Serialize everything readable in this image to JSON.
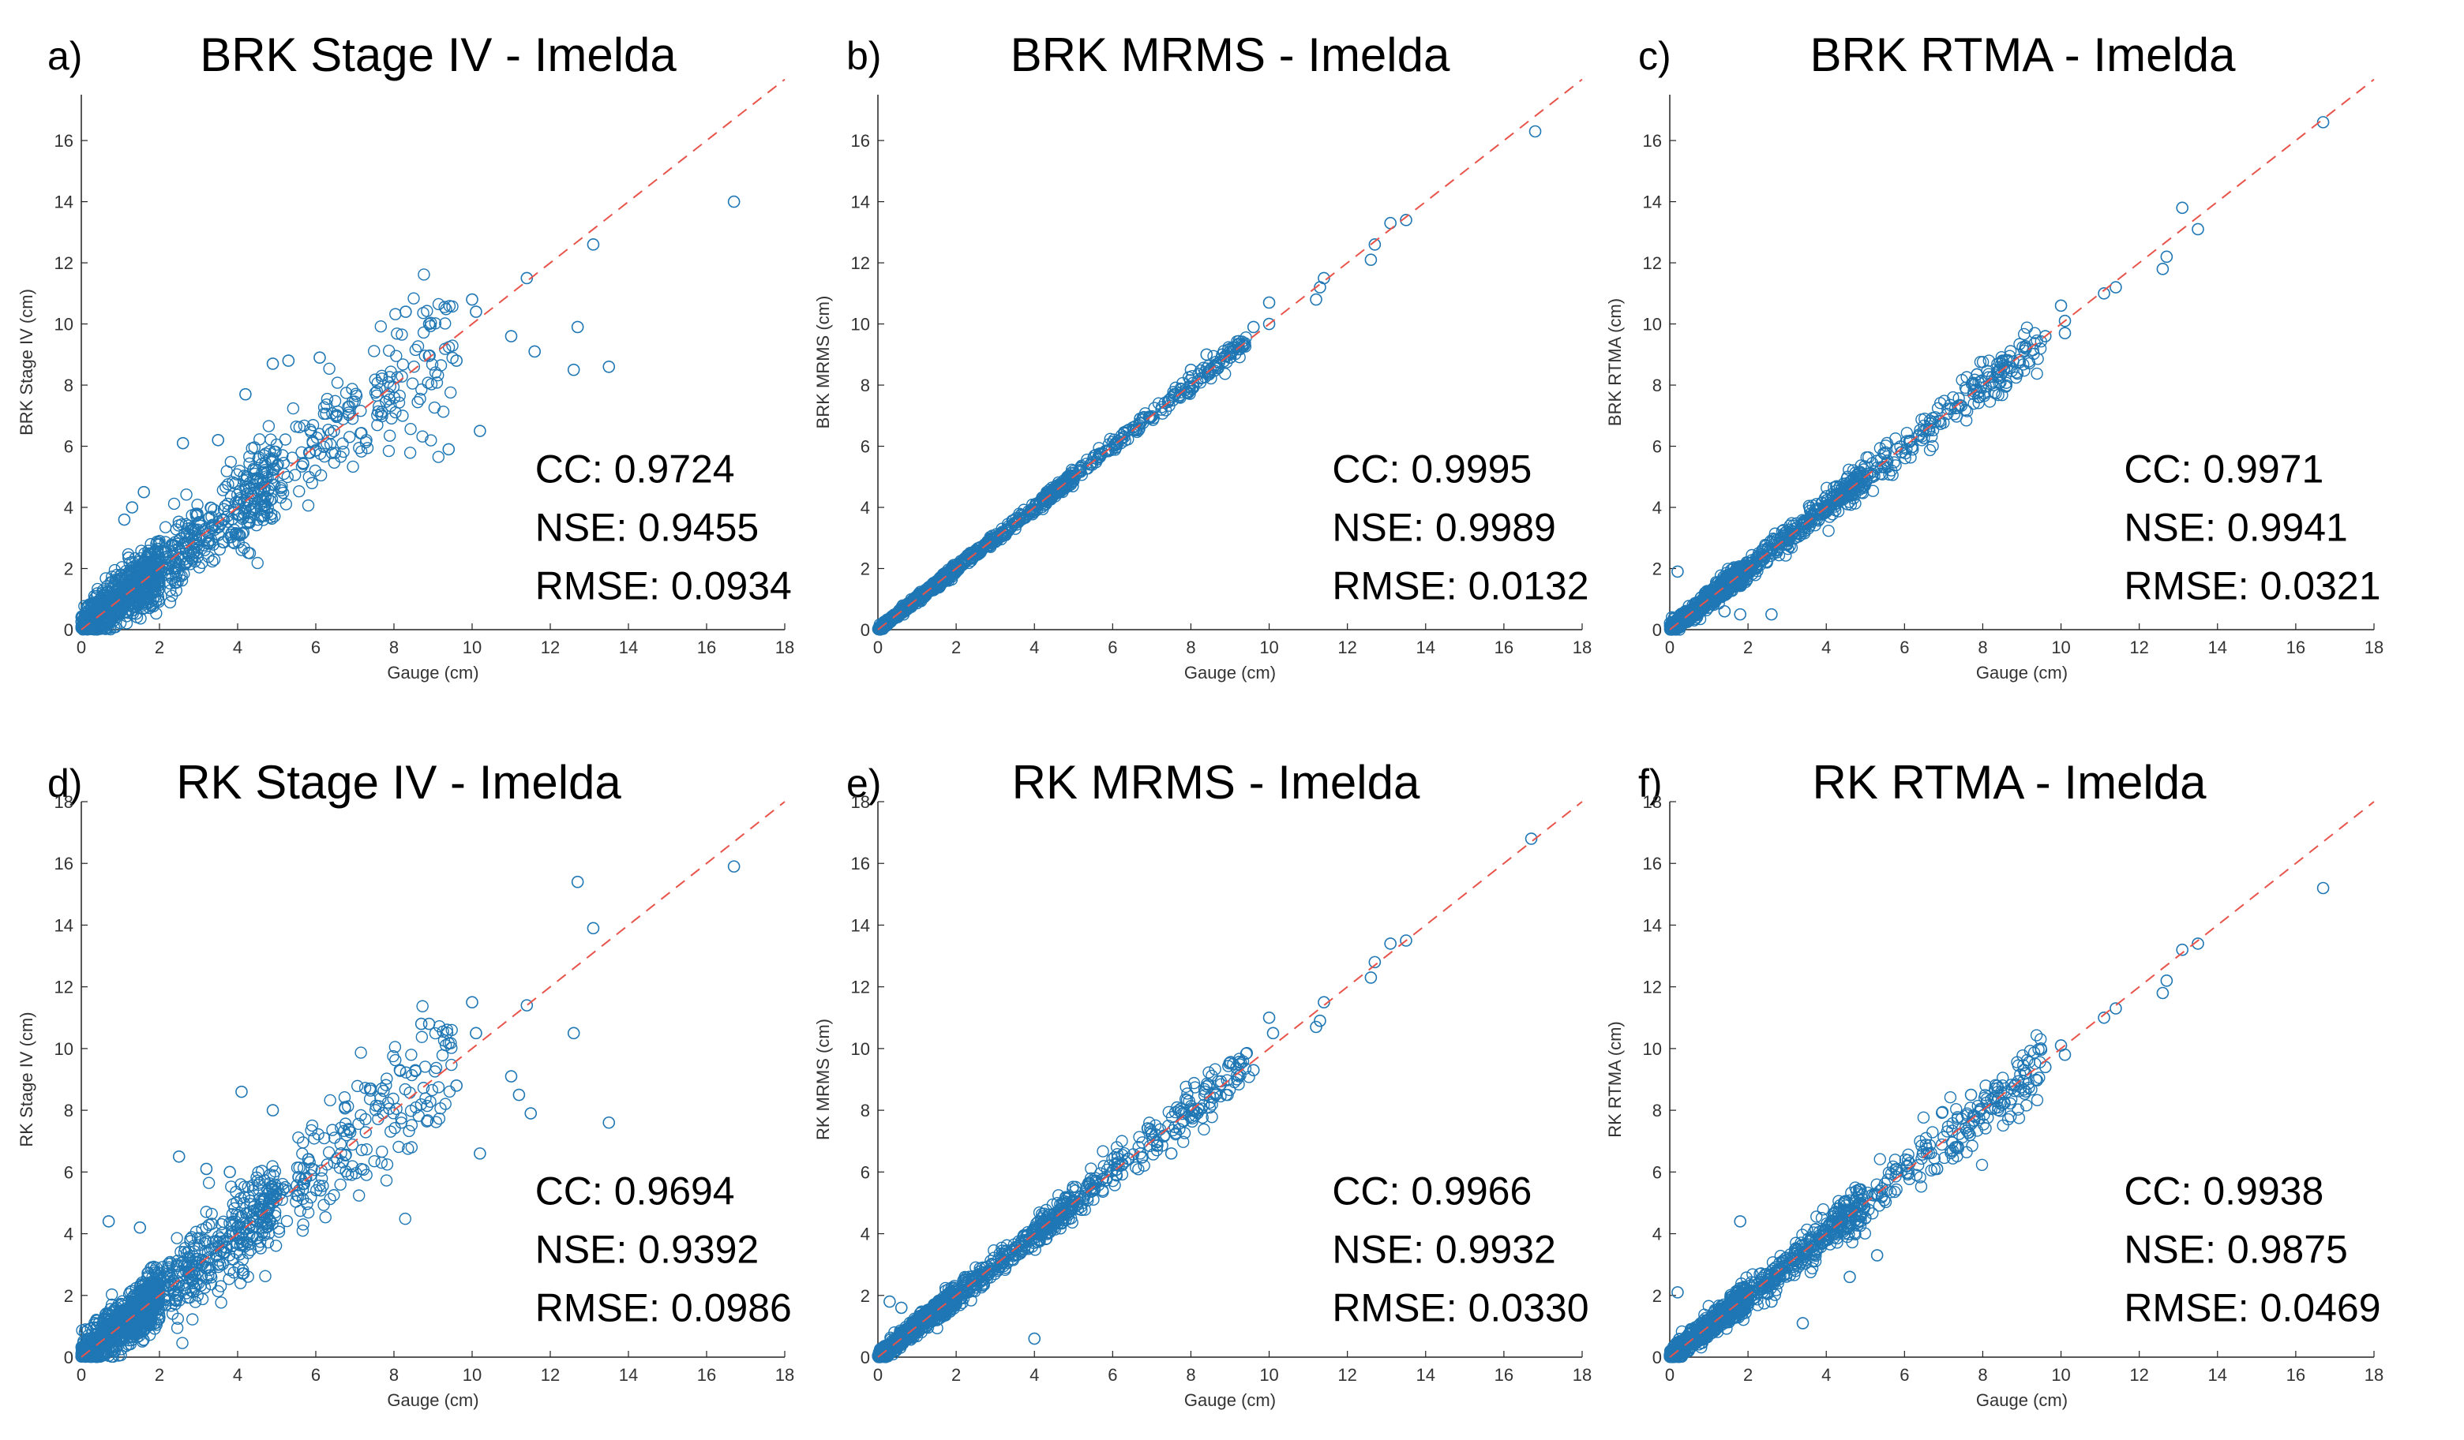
{
  "chart_data": [
    {
      "type": "scatter",
      "panel": "a)",
      "title": "BRK Stage IV - Imelda",
      "xlabel": "Gauge (cm)",
      "ylabel": "BRK Stage IV (cm)",
      "xlim": [
        0,
        18
      ],
      "ylim": [
        0,
        17.5
      ],
      "xticks": [
        0,
        2,
        4,
        6,
        8,
        10,
        12,
        14,
        16,
        18
      ],
      "yticks": [
        0,
        2,
        4,
        6,
        8,
        10,
        12,
        14,
        16
      ],
      "stats": {
        "cc": "CC: 0.9724",
        "nse": "NSE: 0.9455",
        "rmse": "RMSE: 0.0934"
      },
      "scatter_spread": 0.9,
      "points": [
        [
          16.7,
          14.0
        ],
        [
          13.1,
          12.6
        ],
        [
          11.4,
          11.5
        ],
        [
          10.0,
          10.8
        ],
        [
          10.1,
          10.4
        ],
        [
          9.6,
          8.8
        ],
        [
          12.7,
          9.9
        ],
        [
          12.6,
          8.5
        ],
        [
          13.5,
          8.6
        ],
        [
          11.6,
          9.1
        ],
        [
          10.2,
          6.5
        ],
        [
          9.4,
          5.9
        ],
        [
          8.3,
          10.4
        ],
        [
          8.9,
          10.0
        ],
        [
          11.0,
          9.6
        ],
        [
          4.2,
          7.7
        ],
        [
          4.9,
          8.7
        ],
        [
          5.3,
          8.8
        ],
        [
          6.1,
          8.9
        ],
        [
          3.5,
          6.2
        ],
        [
          2.6,
          6.1
        ],
        [
          1.6,
          4.5
        ],
        [
          1.1,
          3.6
        ],
        [
          1.3,
          4.0
        ]
      ]
    },
    {
      "type": "scatter",
      "panel": "b)",
      "title": "BRK MRMS - Imelda",
      "xlabel": "Gauge (cm)",
      "ylabel": "BRK MRMS (cm)",
      "xlim": [
        0,
        18
      ],
      "ylim": [
        0,
        17.5
      ],
      "xticks": [
        0,
        2,
        4,
        6,
        8,
        10,
        12,
        14,
        16,
        18
      ],
      "yticks": [
        0,
        2,
        4,
        6,
        8,
        10,
        12,
        14,
        16
      ],
      "stats": {
        "cc": "CC: 0.9995",
        "nse": "NSE: 0.9989",
        "rmse": "RMSE: 0.0132"
      },
      "scatter_spread": 0.12,
      "points": [
        [
          16.8,
          16.3
        ],
        [
          13.5,
          13.4
        ],
        [
          13.1,
          13.3
        ],
        [
          12.7,
          12.6
        ],
        [
          12.6,
          12.1
        ],
        [
          11.4,
          11.5
        ],
        [
          11.3,
          11.2
        ],
        [
          11.2,
          10.8
        ],
        [
          10.0,
          10.7
        ],
        [
          10.0,
          10.0
        ],
        [
          9.6,
          9.9
        ],
        [
          8.8,
          9.0
        ],
        [
          8.4,
          9.0
        ],
        [
          8.0,
          8.5
        ],
        [
          7.6,
          7.7
        ]
      ]
    },
    {
      "type": "scatter",
      "panel": "c)",
      "title": "BRK RTMA - Imelda",
      "xlabel": "Gauge (cm)",
      "ylabel": "BRK RTMA (cm)",
      "xlim": [
        0,
        18
      ],
      "ylim": [
        0,
        17.5
      ],
      "xticks": [
        0,
        2,
        4,
        6,
        8,
        10,
        12,
        14,
        16,
        18
      ],
      "yticks": [
        0,
        2,
        4,
        6,
        8,
        10,
        12,
        14,
        16
      ],
      "stats": {
        "cc": "CC: 0.9971",
        "nse": "NSE: 0.9941",
        "rmse": "RMSE: 0.0321"
      },
      "scatter_spread": 0.3,
      "points": [
        [
          16.7,
          16.6
        ],
        [
          13.1,
          13.8
        ],
        [
          13.5,
          13.1
        ],
        [
          12.7,
          12.2
        ],
        [
          12.6,
          11.8
        ],
        [
          11.4,
          11.2
        ],
        [
          11.1,
          11.0
        ],
        [
          10.0,
          10.6
        ],
        [
          10.1,
          10.1
        ],
        [
          10.1,
          9.7
        ],
        [
          9.6,
          9.6
        ],
        [
          8.5,
          8.8
        ],
        [
          1.8,
          0.5
        ],
        [
          2.6,
          0.5
        ],
        [
          0.2,
          1.9
        ],
        [
          0.9,
          1.2
        ],
        [
          1.4,
          0.6
        ]
      ]
    },
    {
      "type": "scatter",
      "panel": "d)",
      "title": "RK Stage IV - Imelda",
      "xlabel": "Gauge (cm)",
      "ylabel": "RK Stage IV (cm)",
      "xlim": [
        0,
        18
      ],
      "ylim": [
        0,
        18
      ],
      "xticks": [
        0,
        2,
        4,
        6,
        8,
        10,
        12,
        14,
        16,
        18
      ],
      "yticks": [
        0,
        2,
        4,
        6,
        8,
        10,
        12,
        14,
        16,
        18
      ],
      "stats": {
        "cc": "CC: 0.9694",
        "nse": "NSE: 0.9392",
        "rmse": "RMSE: 0.0986"
      },
      "scatter_spread": 0.9,
      "points": [
        [
          16.7,
          15.9
        ],
        [
          12.7,
          15.4
        ],
        [
          13.1,
          13.9
        ],
        [
          10.0,
          11.5
        ],
        [
          11.4,
          11.4
        ],
        [
          12.6,
          10.5
        ],
        [
          13.5,
          7.6
        ],
        [
          11.2,
          8.5
        ],
        [
          11.5,
          7.9
        ],
        [
          11.0,
          9.1
        ],
        [
          10.2,
          6.6
        ],
        [
          10.1,
          10.5
        ],
        [
          8.7,
          10.8
        ],
        [
          8.9,
          10.8
        ],
        [
          9.6,
          8.8
        ],
        [
          4.1,
          8.6
        ],
        [
          4.9,
          8.0
        ],
        [
          3.8,
          6.0
        ],
        [
          3.2,
          6.1
        ],
        [
          2.5,
          6.5
        ],
        [
          0.7,
          4.4
        ],
        [
          1.5,
          4.2
        ]
      ]
    },
    {
      "type": "scatter",
      "panel": "e)",
      "title": "RK MRMS - Imelda",
      "xlabel": "Gauge (cm)",
      "ylabel": "RK MRMS (cm)",
      "xlim": [
        0,
        18
      ],
      "ylim": [
        0,
        18
      ],
      "xticks": [
        0,
        2,
        4,
        6,
        8,
        10,
        12,
        14,
        16,
        18
      ],
      "yticks": [
        0,
        2,
        4,
        6,
        8,
        10,
        12,
        14,
        16,
        18
      ],
      "stats": {
        "cc": "CC: 0.9966",
        "nse": "NSE: 0.9932",
        "rmse": "RMSE: 0.0330"
      },
      "scatter_spread": 0.3,
      "points": [
        [
          16.7,
          16.8
        ],
        [
          13.5,
          13.5
        ],
        [
          13.1,
          13.4
        ],
        [
          12.7,
          12.8
        ],
        [
          12.6,
          12.3
        ],
        [
          11.4,
          11.5
        ],
        [
          11.3,
          10.9
        ],
        [
          11.2,
          10.7
        ],
        [
          10.0,
          11.0
        ],
        [
          10.1,
          10.5
        ],
        [
          9.6,
          9.3
        ],
        [
          4.0,
          0.6
        ],
        [
          0.3,
          1.8
        ],
        [
          0.6,
          1.6
        ],
        [
          7.5,
          6.6
        ]
      ]
    },
    {
      "type": "scatter",
      "panel": "f)",
      "title": "RK RTMA - Imelda",
      "xlabel": "Gauge (cm)",
      "ylabel": "RK RTMA (cm)",
      "xlim": [
        0,
        18
      ],
      "ylim": [
        0,
        18
      ],
      "xticks": [
        0,
        2,
        4,
        6,
        8,
        10,
        12,
        14,
        16,
        18
      ],
      "yticks": [
        0,
        2,
        4,
        6,
        8,
        10,
        12,
        14,
        16,
        18
      ],
      "stats": {
        "cc": "CC: 0.9938",
        "nse": "NSE: 0.9875",
        "rmse": "RMSE: 0.0469"
      },
      "scatter_spread": 0.4,
      "points": [
        [
          16.7,
          15.2
        ],
        [
          13.1,
          13.2
        ],
        [
          13.5,
          13.4
        ],
        [
          12.7,
          12.2
        ],
        [
          12.6,
          11.8
        ],
        [
          11.4,
          11.3
        ],
        [
          11.1,
          11.0
        ],
        [
          10.0,
          10.1
        ],
        [
          10.1,
          9.8
        ],
        [
          9.6,
          9.4
        ],
        [
          1.8,
          4.4
        ],
        [
          2.6,
          1.8
        ],
        [
          3.4,
          1.1
        ],
        [
          4.6,
          2.6
        ],
        [
          5.3,
          3.3
        ],
        [
          8.4,
          8.4
        ],
        [
          7.7,
          8.5
        ],
        [
          5.8,
          6.1
        ],
        [
          0.2,
          2.1
        ]
      ]
    }
  ],
  "colors": {
    "marker": "#1f77b4",
    "reference_line": "#e8534a",
    "axis": "#222222",
    "text": "#000000"
  }
}
